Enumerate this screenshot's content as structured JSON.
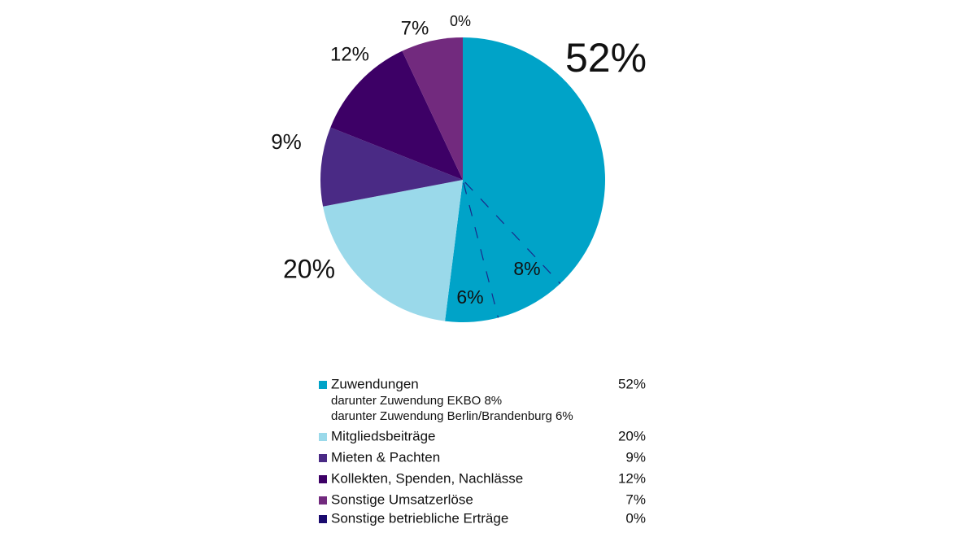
{
  "chart_data": {
    "type": "pie",
    "labels": [
      "Zuwendungen",
      "Mitgliedsbeiträge",
      "Mieten & Pachten",
      "Kollekten, Spenden, Nachlässe",
      "Sonstige Umsatzerlöse",
      "Sonstige betriebliche Erträge"
    ],
    "values": [
      52,
      20,
      9,
      12,
      7,
      0
    ],
    "value_labels": [
      "52%",
      "20%",
      "9%",
      "12%",
      "7%",
      "0%"
    ],
    "colors": [
      "#00a3c8",
      "#9ad9ea",
      "#4a2a85",
      "#3d0066",
      "#722a7e",
      "#1a0a6e"
    ],
    "sub_slices": [
      {
        "label": "darunter Zuwendung EKBO 8%",
        "value": 8,
        "value_label": "8%"
      },
      {
        "label": "darunter Zuwendung Berlin/Brandenburg 6%",
        "value": 6,
        "value_label": "6%"
      }
    ]
  }
}
